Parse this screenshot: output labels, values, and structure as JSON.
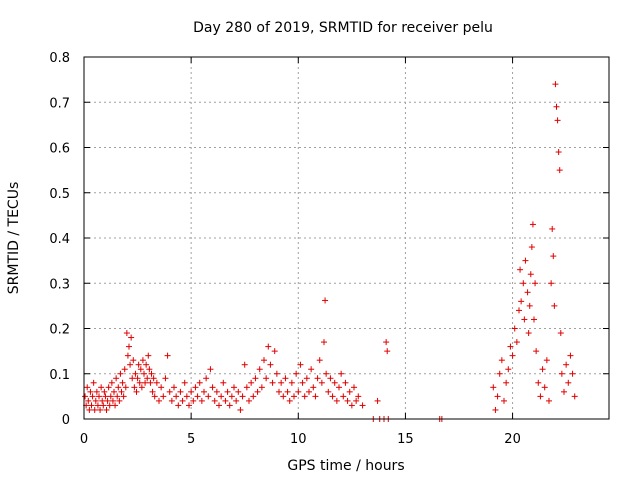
{
  "chart_data": {
    "type": "scatter",
    "title": "Day 280 of 2019, SRMTID for receiver pelu",
    "xlabel": "GPS time / hours",
    "ylabel": "SRMTID / TECUs",
    "xlim": [
      0,
      24.5
    ],
    "ylim": [
      0,
      0.8
    ],
    "xticks": [
      0,
      5,
      10,
      15,
      20
    ],
    "xtick_labels": [
      "0",
      "5",
      "10",
      "15",
      "20"
    ],
    "yticks": [
      0,
      0.1,
      0.2,
      0.3,
      0.4,
      0.5,
      0.6,
      0.7,
      0.8
    ],
    "ytick_labels": [
      "0",
      "0.1",
      "0.2",
      "0.3",
      "0.4",
      "0.5",
      "0.6",
      "0.7",
      "0.8"
    ],
    "grid": true,
    "marker": "+",
    "color": "#e00000",
    "series": [
      {
        "name": "SRMTID",
        "points": [
          [
            0.05,
            0.05
          ],
          [
            0.1,
            0.03
          ],
          [
            0.15,
            0.07
          ],
          [
            0.2,
            0.04
          ],
          [
            0.25,
            0.02
          ],
          [
            0.3,
            0.06
          ],
          [
            0.35,
            0.03
          ],
          [
            0.4,
            0.05
          ],
          [
            0.45,
            0.08
          ],
          [
            0.5,
            0.02
          ],
          [
            0.55,
            0.04
          ],
          [
            0.6,
            0.06
          ],
          [
            0.65,
            0.03
          ],
          [
            0.7,
            0.05
          ],
          [
            0.75,
            0.02
          ],
          [
            0.8,
            0.07
          ],
          [
            0.85,
            0.04
          ],
          [
            0.9,
            0.03
          ],
          [
            0.95,
            0.06
          ],
          [
            1.0,
            0.05
          ],
          [
            1.05,
            0.02
          ],
          [
            1.1,
            0.04
          ],
          [
            1.15,
            0.07
          ],
          [
            1.2,
            0.03
          ],
          [
            1.25,
            0.05
          ],
          [
            1.3,
            0.08
          ],
          [
            1.35,
            0.04
          ],
          [
            1.4,
            0.06
          ],
          [
            1.45,
            0.03
          ],
          [
            1.5,
            0.09
          ],
          [
            1.55,
            0.05
          ],
          [
            1.6,
            0.07
          ],
          [
            1.65,
            0.04
          ],
          [
            1.7,
            0.1
          ],
          [
            1.75,
            0.06
          ],
          [
            1.8,
            0.08
          ],
          [
            1.85,
            0.05
          ],
          [
            1.9,
            0.11
          ],
          [
            1.95,
            0.07
          ],
          [
            2.0,
            0.19
          ],
          [
            2.05,
            0.14
          ],
          [
            2.1,
            0.16
          ],
          [
            2.15,
            0.12
          ],
          [
            2.2,
            0.18
          ],
          [
            2.25,
            0.09
          ],
          [
            2.3,
            0.13
          ],
          [
            2.35,
            0.07
          ],
          [
            2.4,
            0.1
          ],
          [
            2.45,
            0.06
          ],
          [
            2.5,
            0.09
          ],
          [
            2.55,
            0.12
          ],
          [
            2.6,
            0.08
          ],
          [
            2.65,
            0.11
          ],
          [
            2.7,
            0.07
          ],
          [
            2.75,
            0.13
          ],
          [
            2.8,
            0.1
          ],
          [
            2.85,
            0.08
          ],
          [
            2.9,
            0.12
          ],
          [
            2.95,
            0.09
          ],
          [
            3.0,
            0.14
          ],
          [
            3.05,
            0.11
          ],
          [
            3.1,
            0.08
          ],
          [
            3.15,
            0.1
          ],
          [
            3.2,
            0.06
          ],
          [
            3.25,
            0.09
          ],
          [
            3.3,
            0.05
          ],
          [
            3.4,
            0.08
          ],
          [
            3.5,
            0.04
          ],
          [
            3.6,
            0.07
          ],
          [
            3.7,
            0.05
          ],
          [
            3.8,
            0.09
          ],
          [
            3.9,
            0.14
          ],
          [
            4.0,
            0.06
          ],
          [
            4.1,
            0.04
          ],
          [
            4.2,
            0.07
          ],
          [
            4.3,
            0.05
          ],
          [
            4.4,
            0.03
          ],
          [
            4.5,
            0.06
          ],
          [
            4.6,
            0.04
          ],
          [
            4.7,
            0.08
          ],
          [
            4.8,
            0.05
          ],
          [
            4.9,
            0.03
          ],
          [
            5.0,
            0.06
          ],
          [
            5.1,
            0.04
          ],
          [
            5.2,
            0.07
          ],
          [
            5.3,
            0.05
          ],
          [
            5.4,
            0.08
          ],
          [
            5.5,
            0.04
          ],
          [
            5.6,
            0.06
          ],
          [
            5.7,
            0.09
          ],
          [
            5.8,
            0.05
          ],
          [
            5.9,
            0.11
          ],
          [
            6.0,
            0.07
          ],
          [
            6.1,
            0.04
          ],
          [
            6.2,
            0.06
          ],
          [
            6.3,
            0.03
          ],
          [
            6.4,
            0.05
          ],
          [
            6.5,
            0.08
          ],
          [
            6.6,
            0.04
          ],
          [
            6.7,
            0.06
          ],
          [
            6.8,
            0.03
          ],
          [
            6.9,
            0.05
          ],
          [
            7.0,
            0.07
          ],
          [
            7.1,
            0.04
          ],
          [
            7.2,
            0.06
          ],
          [
            7.3,
            0.02
          ],
          [
            7.4,
            0.05
          ],
          [
            7.5,
            0.12
          ],
          [
            7.6,
            0.07
          ],
          [
            7.7,
            0.04
          ],
          [
            7.8,
            0.08
          ],
          [
            7.9,
            0.05
          ],
          [
            8.0,
            0.09
          ],
          [
            8.1,
            0.06
          ],
          [
            8.2,
            0.11
          ],
          [
            8.3,
            0.07
          ],
          [
            8.4,
            0.13
          ],
          [
            8.5,
            0.09
          ],
          [
            8.6,
            0.16
          ],
          [
            8.7,
            0.12
          ],
          [
            8.8,
            0.08
          ],
          [
            8.9,
            0.15
          ],
          [
            9.0,
            0.1
          ],
          [
            9.1,
            0.06
          ],
          [
            9.2,
            0.08
          ],
          [
            9.3,
            0.05
          ],
          [
            9.4,
            0.09
          ],
          [
            9.5,
            0.06
          ],
          [
            9.6,
            0.04
          ],
          [
            9.7,
            0.08
          ],
          [
            9.8,
            0.05
          ],
          [
            9.9,
            0.1
          ],
          [
            10.0,
            0.06
          ],
          [
            10.1,
            0.12
          ],
          [
            10.2,
            0.08
          ],
          [
            10.3,
            0.05
          ],
          [
            10.4,
            0.09
          ],
          [
            10.5,
            0.06
          ],
          [
            10.6,
            0.11
          ],
          [
            10.7,
            0.07
          ],
          [
            10.8,
            0.05
          ],
          [
            10.9,
            0.09
          ],
          [
            11.0,
            0.13
          ],
          [
            11.1,
            0.08
          ],
          [
            11.2,
            0.17
          ],
          [
            11.25,
            0.262
          ],
          [
            11.3,
            0.1
          ],
          [
            11.4,
            0.06
          ],
          [
            11.5,
            0.09
          ],
          [
            11.6,
            0.05
          ],
          [
            11.7,
            0.08
          ],
          [
            11.8,
            0.04
          ],
          [
            11.9,
            0.07
          ],
          [
            12.0,
            0.1
          ],
          [
            12.1,
            0.05
          ],
          [
            12.2,
            0.08
          ],
          [
            12.3,
            0.04
          ],
          [
            12.4,
            0.06
          ],
          [
            12.5,
            0.03
          ],
          [
            12.6,
            0.07
          ],
          [
            12.7,
            0.04
          ],
          [
            12.8,
            0.05
          ],
          [
            13.0,
            0.03
          ],
          [
            13.5,
            0.0
          ],
          [
            13.7,
            0.04
          ],
          [
            13.8,
            0.0
          ],
          [
            14.0,
            0.0
          ],
          [
            14.1,
            0.17
          ],
          [
            14.15,
            0.15
          ],
          [
            14.2,
            0.0
          ],
          [
            16.6,
            0.0
          ],
          [
            16.7,
            0.0
          ],
          [
            19.1,
            0.07
          ],
          [
            19.2,
            0.02
          ],
          [
            19.3,
            0.05
          ],
          [
            19.4,
            0.1
          ],
          [
            19.5,
            0.13
          ],
          [
            19.6,
            0.04
          ],
          [
            19.7,
            0.08
          ],
          [
            19.8,
            0.11
          ],
          [
            19.9,
            0.16
          ],
          [
            20.0,
            0.14
          ],
          [
            20.1,
            0.2
          ],
          [
            20.2,
            0.17
          ],
          [
            20.3,
            0.24
          ],
          [
            20.35,
            0.33
          ],
          [
            20.4,
            0.26
          ],
          [
            20.5,
            0.3
          ],
          [
            20.55,
            0.22
          ],
          [
            20.6,
            0.35
          ],
          [
            20.7,
            0.28
          ],
          [
            20.75,
            0.19
          ],
          [
            20.8,
            0.25
          ],
          [
            20.85,
            0.32
          ],
          [
            20.9,
            0.38
          ],
          [
            20.95,
            0.43
          ],
          [
            21.0,
            0.22
          ],
          [
            21.05,
            0.3
          ],
          [
            21.1,
            0.15
          ],
          [
            21.2,
            0.08
          ],
          [
            21.3,
            0.05
          ],
          [
            21.4,
            0.11
          ],
          [
            21.5,
            0.07
          ],
          [
            21.6,
            0.13
          ],
          [
            21.7,
            0.04
          ],
          [
            21.8,
            0.3
          ],
          [
            21.85,
            0.42
          ],
          [
            21.9,
            0.36
          ],
          [
            21.95,
            0.25
          ],
          [
            22.0,
            0.74
          ],
          [
            22.05,
            0.69
          ],
          [
            22.1,
            0.66
          ],
          [
            22.15,
            0.59
          ],
          [
            22.2,
            0.55
          ],
          [
            22.25,
            0.19
          ],
          [
            22.3,
            0.1
          ],
          [
            22.4,
            0.06
          ],
          [
            22.5,
            0.12
          ],
          [
            22.6,
            0.08
          ],
          [
            22.7,
            0.14
          ],
          [
            22.8,
            0.1
          ],
          [
            22.9,
            0.05
          ]
        ]
      }
    ]
  }
}
